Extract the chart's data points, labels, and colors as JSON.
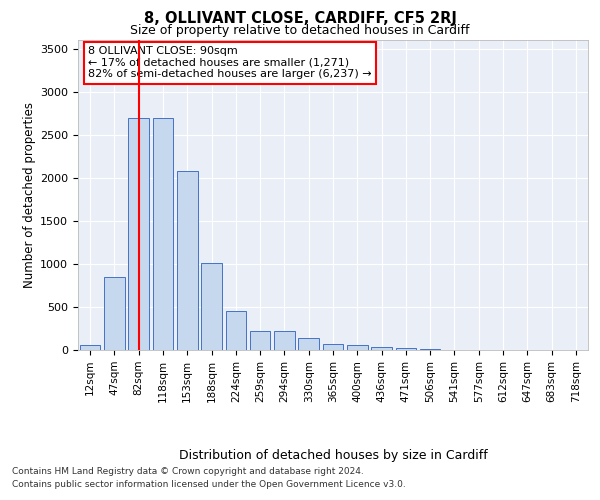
{
  "title1": "8, OLLIVANT CLOSE, CARDIFF, CF5 2RJ",
  "title2": "Size of property relative to detached houses in Cardiff",
  "xlabel": "Distribution of detached houses by size in Cardiff",
  "ylabel": "Number of detached properties",
  "categories": [
    "12sqm",
    "47sqm",
    "82sqm",
    "118sqm",
    "153sqm",
    "188sqm",
    "224sqm",
    "259sqm",
    "294sqm",
    "330sqm",
    "365sqm",
    "400sqm",
    "436sqm",
    "471sqm",
    "506sqm",
    "541sqm",
    "577sqm",
    "612sqm",
    "647sqm",
    "683sqm",
    "718sqm"
  ],
  "values": [
    60,
    850,
    2700,
    2700,
    2075,
    1010,
    450,
    220,
    220,
    140,
    75,
    60,
    40,
    25,
    10,
    5,
    3,
    2,
    1,
    1,
    0
  ],
  "bar_color": "#c5d8ed",
  "bar_edge_color": "#4472c4",
  "background_color": "#eaeff7",
  "vline_x": 2,
  "vline_color": "red",
  "annotation_text": "8 OLLIVANT CLOSE: 90sqm\n← 17% of detached houses are smaller (1,271)\n82% of semi-detached houses are larger (6,237) →",
  "annotation_box_color": "white",
  "annotation_box_edge_color": "red",
  "ylim": [
    0,
    3600
  ],
  "yticks": [
    0,
    500,
    1000,
    1500,
    2000,
    2500,
    3000,
    3500
  ],
  "footer1": "Contains HM Land Registry data © Crown copyright and database right 2024.",
  "footer2": "Contains public sector information licensed under the Open Government Licence v3.0."
}
